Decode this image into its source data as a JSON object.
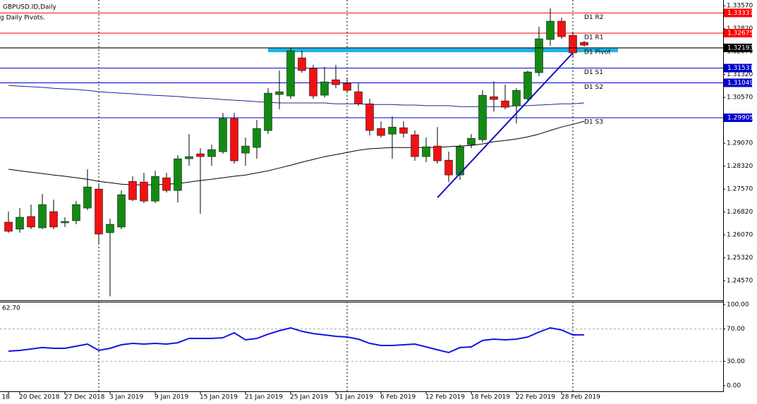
{
  "chart_data": {
    "type": "candlestick",
    "title": "GBPUSD.ID,Daily",
    "subtitle": "g Daily Pivots.",
    "categories": [
      "18",
      "20 Dec 2018",
      null,
      null,
      null,
      "27 Dec 2018",
      null,
      null,
      null,
      "3 Jan 2019",
      null,
      null,
      null,
      "9 Jan 2019",
      null,
      null,
      null,
      "15 Jan 2019",
      null,
      null,
      null,
      "21 Jan 2019",
      null,
      null,
      null,
      "25 Jan 2019",
      null,
      null,
      null,
      "31 Jan 2019",
      null,
      null,
      null,
      "6 Feb 2019",
      null,
      null,
      null,
      "12 Feb 2019",
      null,
      null,
      null,
      "18 Feb 2019",
      null,
      null,
      null,
      "22 Feb 2019",
      null,
      null,
      null,
      "28 Feb 2019",
      null,
      null
    ],
    "open": [
      1.26488,
      1.26258,
      1.26672,
      1.26303,
      1.26833,
      1.26465,
      1.26534,
      1.26948,
      1.27571,
      1.26142,
      1.26327,
      1.27824,
      1.27801,
      1.27178,
      1.2794,
      1.27524,
      1.28563,
      1.28725,
      1.28633,
      1.28794,
      1.2988,
      1.28748,
      1.28933,
      1.29487,
      1.30665,
      1.30618,
      1.31866,
      1.31519,
      1.30642,
      1.3115,
      1.31034,
      1.30757,
      1.30364,
      1.29556,
      1.29371,
      1.29579,
      1.29348,
      1.28633,
      1.28979,
      1.28517,
      1.28032,
      1.29025,
      1.29187,
      1.30595,
      1.30457,
      1.30295,
      1.30526,
      1.31381,
      1.32466,
      1.33067,
      1.32605,
      1.32374
    ],
    "high": [
      1.26833,
      1.26948,
      1.27063,
      1.27409,
      1.27225,
      1.26649,
      1.27178,
      1.28217,
      1.27709,
      1.26603,
      1.27524,
      1.27986,
      1.28101,
      1.28171,
      1.28101,
      1.28679,
      1.29371,
      1.2891,
      1.29025,
      1.30064,
      1.30064,
      1.29256,
      1.29833,
      1.30873,
      1.3145,
      1.32189,
      1.32097,
      1.31635,
      1.31566,
      1.31635,
      1.31173,
      1.31034,
      1.30526,
      1.29787,
      1.29949,
      1.29787,
      1.29487,
      1.29256,
      1.29602,
      1.28794,
      1.29025,
      1.29371,
      1.30803,
      1.31104,
      1.30988,
      1.30873,
      1.3145,
      1.32882,
      1.33483,
      1.33183,
      1.32721,
      1.3242
    ],
    "low": [
      1.26142,
      1.26142,
      1.26258,
      1.26258,
      1.26258,
      1.26327,
      1.26419,
      1.26879,
      1.25796,
      1.24058,
      1.26258,
      1.27178,
      1.27109,
      1.27109,
      1.27455,
      1.27132,
      1.28332,
      1.26764,
      1.28332,
      1.28725,
      1.28402,
      1.28332,
      1.28563,
      1.29371,
      1.3018,
      1.30526,
      1.31381,
      1.30526,
      1.30572,
      1.30873,
      1.30711,
      1.30295,
      1.29325,
      1.29256,
      1.28563,
      1.29256,
      1.28494,
      1.28448,
      1.28402,
      1.27801,
      1.2787,
      1.2891,
      1.29094,
      1.3011,
      1.3018,
      1.29718,
      1.30411,
      1.31265,
      1.32259,
      1.3249,
      1.31866,
      1.32236
    ],
    "close": [
      1.26188,
      1.26649,
      1.26327,
      1.27063,
      1.26327,
      1.26511,
      1.27063,
      1.2764,
      1.26096,
      1.26419,
      1.27386,
      1.27225,
      1.27178,
      1.27986,
      1.27524,
      1.28563,
      1.28633,
      1.28633,
      1.28863,
      1.2988,
      1.28494,
      1.28979,
      1.29556,
      1.30711,
      1.30757,
      1.32097,
      1.3145,
      1.30618,
      1.3108,
      1.30988,
      1.30803,
      1.30364,
      1.29487,
      1.29325,
      1.29602,
      1.29395,
      1.28633,
      1.28956,
      1.28494,
      1.28032,
      1.28956,
      1.29233,
      1.30642,
      1.30503,
      1.30249,
      1.30803,
      1.31404,
      1.3249,
      1.33067,
      1.32559,
      1.32028,
      1.32282
    ],
    "up_color": "#138a13",
    "down_color": "#f01212",
    "wick_color": "#000000",
    "ylim": [
      1.2395,
      1.3376
    ],
    "yticks": [
      {
        "value": 1.3357,
        "label": "1.33570"
      },
      {
        "value": 1.3282,
        "label": "1.32820"
      },
      {
        "value": 1.3207,
        "label": "1.32070"
      },
      {
        "value": 1.3132,
        "label": "1.31320"
      },
      {
        "value": 1.3057,
        "label": "1.30570"
      },
      {
        "value": 1.2982,
        "label": "1.29820"
      },
      {
        "value": 1.2907,
        "label": "1.29070"
      },
      {
        "value": 1.2832,
        "label": "1.28320"
      },
      {
        "value": 1.2757,
        "label": "1.27570"
      },
      {
        "value": 1.2682,
        "label": "1.26820"
      },
      {
        "value": 1.2607,
        "label": "1.26070"
      },
      {
        "value": 1.2532,
        "label": "1.25320"
      },
      {
        "value": 1.2457,
        "label": "1.24570"
      }
    ],
    "overlays": [
      {
        "color": "#24248f",
        "values": [
          1.3096,
          1.3094,
          1.3092,
          1.309,
          1.3087,
          1.3085,
          1.3083,
          1.308,
          1.3076,
          1.3073,
          1.3071,
          1.3069,
          1.3066,
          1.3064,
          1.3062,
          1.306,
          1.3057,
          1.3055,
          1.3053,
          1.305,
          1.3048,
          1.3046,
          1.3043,
          1.3041,
          1.3039,
          1.3039,
          1.3039,
          1.3039,
          1.3039,
          1.3036,
          1.3036,
          1.3036,
          1.3034,
          1.3034,
          1.3034,
          1.3032,
          1.3032,
          1.303,
          1.303,
          1.303,
          1.3027,
          1.3027,
          1.3027,
          1.3027,
          1.3027,
          1.303,
          1.303,
          1.3032,
          1.3034,
          1.3036,
          1.3036,
          1.3039
        ]
      },
      {
        "color": "#000000",
        "values": [
          1.2822,
          1.2817,
          1.2812,
          1.2808,
          1.2803,
          1.2799,
          1.2794,
          1.2789,
          1.2782,
          1.2778,
          1.2773,
          1.2771,
          1.2771,
          1.2771,
          1.2773,
          1.2775,
          1.278,
          1.2785,
          1.2789,
          1.2794,
          1.2799,
          1.2803,
          1.281,
          1.2817,
          1.2826,
          1.2835,
          1.2845,
          1.2854,
          1.2863,
          1.287,
          1.2877,
          1.2884,
          1.2889,
          1.2891,
          1.2893,
          1.2893,
          1.2893,
          1.2893,
          1.2893,
          1.2896,
          1.2898,
          1.29,
          1.2905,
          1.2912,
          1.2916,
          1.2921,
          1.2928,
          1.2937,
          1.2949,
          1.296,
          1.2969,
          1.2979
        ]
      }
    ],
    "pivots": [
      {
        "name": "D1 R2",
        "value": 1.33337,
        "color": "#ff0000",
        "price_tag": true
      },
      {
        "name": "D1 R1",
        "value": 1.32675,
        "color": "#ff0000",
        "price_tag": true
      },
      {
        "name": "D1 Pivot",
        "value": 1.3219,
        "color": "#000000",
        "price_tag": false
      },
      {
        "name": "D1 S1",
        "value": 1.31531,
        "color": "#0000cd",
        "price_tag": true
      },
      {
        "name": "D1 S2",
        "value": 1.31049,
        "color": "#0000cd",
        "price_tag": true
      },
      {
        "name": "D1 S3",
        "value": 1.29905,
        "color": "#0000cd",
        "price_tag": true
      }
    ],
    "current_price": {
      "value": 1.32193,
      "color": "#000000"
    },
    "zone": {
      "value": 1.3212,
      "color": "#1fb4e4"
    },
    "trendline": {
      "start_index": 38,
      "start_price": 1.2729,
      "end_index": 50,
      "end_price": 1.3203,
      "color": "#1010c8"
    },
    "indicator": {
      "label": "62.70",
      "color": "#1414e6",
      "values": [
        42.6,
        43.5,
        45.2,
        47.0,
        46.1,
        46.1,
        48.7,
        51.3,
        43.5,
        46.1,
        50.4,
        52.2,
        51.3,
        52.2,
        51.3,
        53.0,
        58.3,
        58.3,
        58.3,
        59.1,
        65.2,
        56.5,
        58.3,
        63.5,
        67.8,
        71.3,
        67.0,
        64.3,
        62.6,
        60.9,
        60.0,
        57.4,
        52.2,
        49.6,
        49.6,
        50.4,
        51.3,
        47.8,
        44.3,
        40.9,
        47.0,
        47.8,
        55.7,
        57.4,
        56.5,
        57.4,
        60.0,
        66.1,
        71.3,
        68.7,
        62.6,
        62.7
      ],
      "ylim": [
        0,
        100
      ],
      "yticks": [
        {
          "value": 100,
          "label": "100.00"
        },
        {
          "value": 70,
          "label": "70.00"
        },
        {
          "value": 30,
          "label": "30.00"
        },
        {
          "value": 0,
          "label": "0.00"
        }
      ],
      "levels": [
        70,
        30
      ]
    }
  }
}
